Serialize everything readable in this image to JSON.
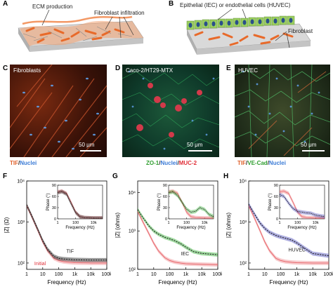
{
  "panels": {
    "A": {
      "label": "A",
      "ann1": "ECM production",
      "ann2": "Fibroblast infiltration"
    },
    "B": {
      "label": "B",
      "ann1": "Epithelial (IEC) or endothelial cells (HUVEC)",
      "ann2": "Fibroblast"
    },
    "C": {
      "label": "C",
      "title": "Fibroblasts",
      "scale": "50 μm",
      "caption_a": "TIF",
      "caption_sep": "/",
      "caption_b": "Nuclei",
      "color_a": "#e0602a",
      "color_b": "#3b7bd6"
    },
    "D": {
      "label": "D",
      "title": "Caco-2/HT29-MTX",
      "scale": "50 μm",
      "caption_a": "ZO-1",
      "caption_b": "Nuclei",
      "caption_c": "MUC-2",
      "color_a": "#2f9e2f",
      "color_b": "#3b7bd6",
      "color_c": "#e0303a"
    },
    "E": {
      "label": "E",
      "title": "HUVEC",
      "scale": "50 μm",
      "caption_a": "TIF",
      "caption_b": "VE-Cad",
      "caption_c": "Nuclei",
      "color_a": "#e0602a",
      "color_b": "#2f9e2f",
      "color_c": "#3b7bd6"
    },
    "F": {
      "label": "F"
    },
    "G": {
      "label": "G"
    },
    "H": {
      "label": "H"
    }
  },
  "chart_data": [
    {
      "type": "line",
      "panel": "F",
      "ylabel": "|Z| (Ω)",
      "xlabel": "Frequency (Hz)",
      "xscale": "log",
      "yscale": "log",
      "xlim": [
        1,
        100000
      ],
      "ylim": [
        70,
        10000
      ],
      "xticks": [
        "1",
        "10",
        "100",
        "1k",
        "10k",
        "100k"
      ],
      "yticks": [
        "10²",
        "10³",
        "10⁴"
      ],
      "annotations": [
        "TIF",
        "Initial"
      ],
      "series": [
        {
          "name": "Initial",
          "color": "#e8676c",
          "x": [
            1,
            2,
            5,
            10,
            20,
            50,
            100,
            200,
            500,
            1000,
            10000,
            100000
          ],
          "y": [
            2500,
            1400,
            620,
            330,
            200,
            130,
            115,
            108,
            104,
            102,
            100,
            100
          ]
        },
        {
          "name": "TIF",
          "color": "#222222",
          "x": [
            1,
            2,
            5,
            10,
            20,
            50,
            100,
            200,
            500,
            1000,
            10000,
            100000
          ],
          "y": [
            2600,
            1450,
            650,
            350,
            215,
            145,
            130,
            125,
            122,
            120,
            118,
            118
          ]
        }
      ],
      "inset": {
        "ylabel": "Phase (°)",
        "xlabel": "Frequency (Hz)",
        "ylim": [
          0,
          90
        ],
        "yticks": [
          "0",
          "30",
          "60",
          "90"
        ],
        "xticks": [
          "1",
          "100",
          "10k"
        ],
        "series": [
          {
            "name": "Initial",
            "x": [
              1,
              3,
              10,
              30,
              100,
              300,
              1000,
              10000,
              100000
            ],
            "y": [
              72,
              74,
              68,
              45,
              18,
              6,
              3,
              2,
              2
            ]
          },
          {
            "name": "TIF",
            "x": [
              1,
              3,
              10,
              30,
              100,
              300,
              1000,
              10000,
              100000
            ],
            "y": [
              70,
              73,
              66,
              42,
              17,
              6,
              3,
              2,
              2
            ]
          }
        ]
      }
    },
    {
      "type": "line",
      "panel": "G",
      "ylabel": "|Z| (ohms)",
      "xlabel": "Frequency (Hz)",
      "xscale": "log",
      "yscale": "log",
      "xlim": [
        1,
        100000
      ],
      "ylim": [
        100,
        20000
      ],
      "xticks": [
        "1",
        "10",
        "100",
        "1k",
        "10k",
        "100k"
      ],
      "yticks": [
        "10²",
        "10³",
        "10⁴"
      ],
      "annotations": [
        "IEC"
      ],
      "series": [
        {
          "name": "Initial",
          "color": "#e8676c",
          "x": [
            1,
            2,
            5,
            10,
            20,
            50,
            100,
            200,
            500,
            1000,
            10000,
            100000
          ],
          "y": [
            3200,
            1800,
            850,
            480,
            300,
            200,
            170,
            155,
            145,
            140,
            135,
            132
          ]
        },
        {
          "name": "IEC",
          "color": "#2fae2f",
          "x": [
            1,
            2,
            5,
            10,
            20,
            50,
            100,
            200,
            500,
            1000,
            3000,
            10000,
            100000
          ],
          "y": [
            3600,
            2300,
            1350,
            1000,
            820,
            680,
            620,
            560,
            460,
            380,
            290,
            260,
            240
          ]
        }
      ],
      "inset": {
        "ylabel": "Phase (°)",
        "xlabel": "Frequency (Hz)",
        "ylim": [
          0,
          90
        ],
        "yticks": [
          "0",
          "30",
          "60",
          "90"
        ],
        "xticks": [
          "1",
          "100",
          "10k"
        ],
        "series": [
          {
            "name": "Initial",
            "x": [
              1,
              3,
              10,
              30,
              100,
              300,
              1000,
              10000,
              100000
            ],
            "y": [
              72,
              74,
              68,
              45,
              18,
              6,
              3,
              2,
              2
            ]
          },
          {
            "name": "IEC",
            "x": [
              1,
              3,
              10,
              30,
              100,
              300,
              1000,
              3000,
              10000,
              30000,
              100000
            ],
            "y": [
              70,
              72,
              62,
              45,
              26,
              18,
              20,
              30,
              25,
              12,
              6
            ]
          }
        ]
      }
    },
    {
      "type": "line",
      "panel": "H",
      "ylabel": "|Z| (ohms)",
      "xlabel": "Frequency (Hz)",
      "xscale": "log",
      "yscale": "log",
      "xlim": [
        1,
        100000
      ],
      "ylim": [
        70,
        10000
      ],
      "xticks": [
        "1",
        "10",
        "100",
        "1k",
        "10k",
        "100k"
      ],
      "yticks": [
        "10²",
        "10³",
        "10⁴"
      ],
      "annotations": [
        "HUVEC"
      ],
      "series": [
        {
          "name": "Initial",
          "color": "#e8676c",
          "x": [
            1,
            2,
            5,
            10,
            20,
            50,
            100,
            200,
            500,
            1000,
            10000,
            100000
          ],
          "y": [
            2500,
            1400,
            620,
            330,
            200,
            130,
            115,
            108,
            104,
            102,
            100,
            100
          ]
        },
        {
          "name": "HUVEC",
          "color": "#4a4ab8",
          "x": [
            1,
            2,
            5,
            10,
            20,
            50,
            100,
            200,
            500,
            1000,
            3000,
            10000,
            100000
          ],
          "y": [
            2700,
            1700,
            950,
            700,
            560,
            470,
            430,
            400,
            360,
            310,
            230,
            170,
            150
          ]
        }
      ],
      "inset": {
        "ylabel": "Phase (°)",
        "xlabel": "Frequency (Hz)",
        "ylim": [
          0,
          90
        ],
        "yticks": [
          "0",
          "30",
          "60",
          "90"
        ],
        "xticks": [
          "1",
          "100",
          "10k"
        ],
        "series": [
          {
            "name": "Initial",
            "x": [
              1,
              3,
              10,
              30,
              100,
              300,
              1000,
              10000,
              100000
            ],
            "y": [
              72,
              74,
              68,
              45,
              18,
              6,
              3,
              2,
              2
            ]
          },
          {
            "name": "HUVEC",
            "x": [
              1,
              3,
              10,
              30,
              100,
              300,
              1000,
              3000,
              10000,
              100000
            ],
            "y": [
              65,
              60,
              42,
              28,
              20,
              18,
              16,
              15,
              10,
              6
            ]
          }
        ]
      }
    }
  ]
}
